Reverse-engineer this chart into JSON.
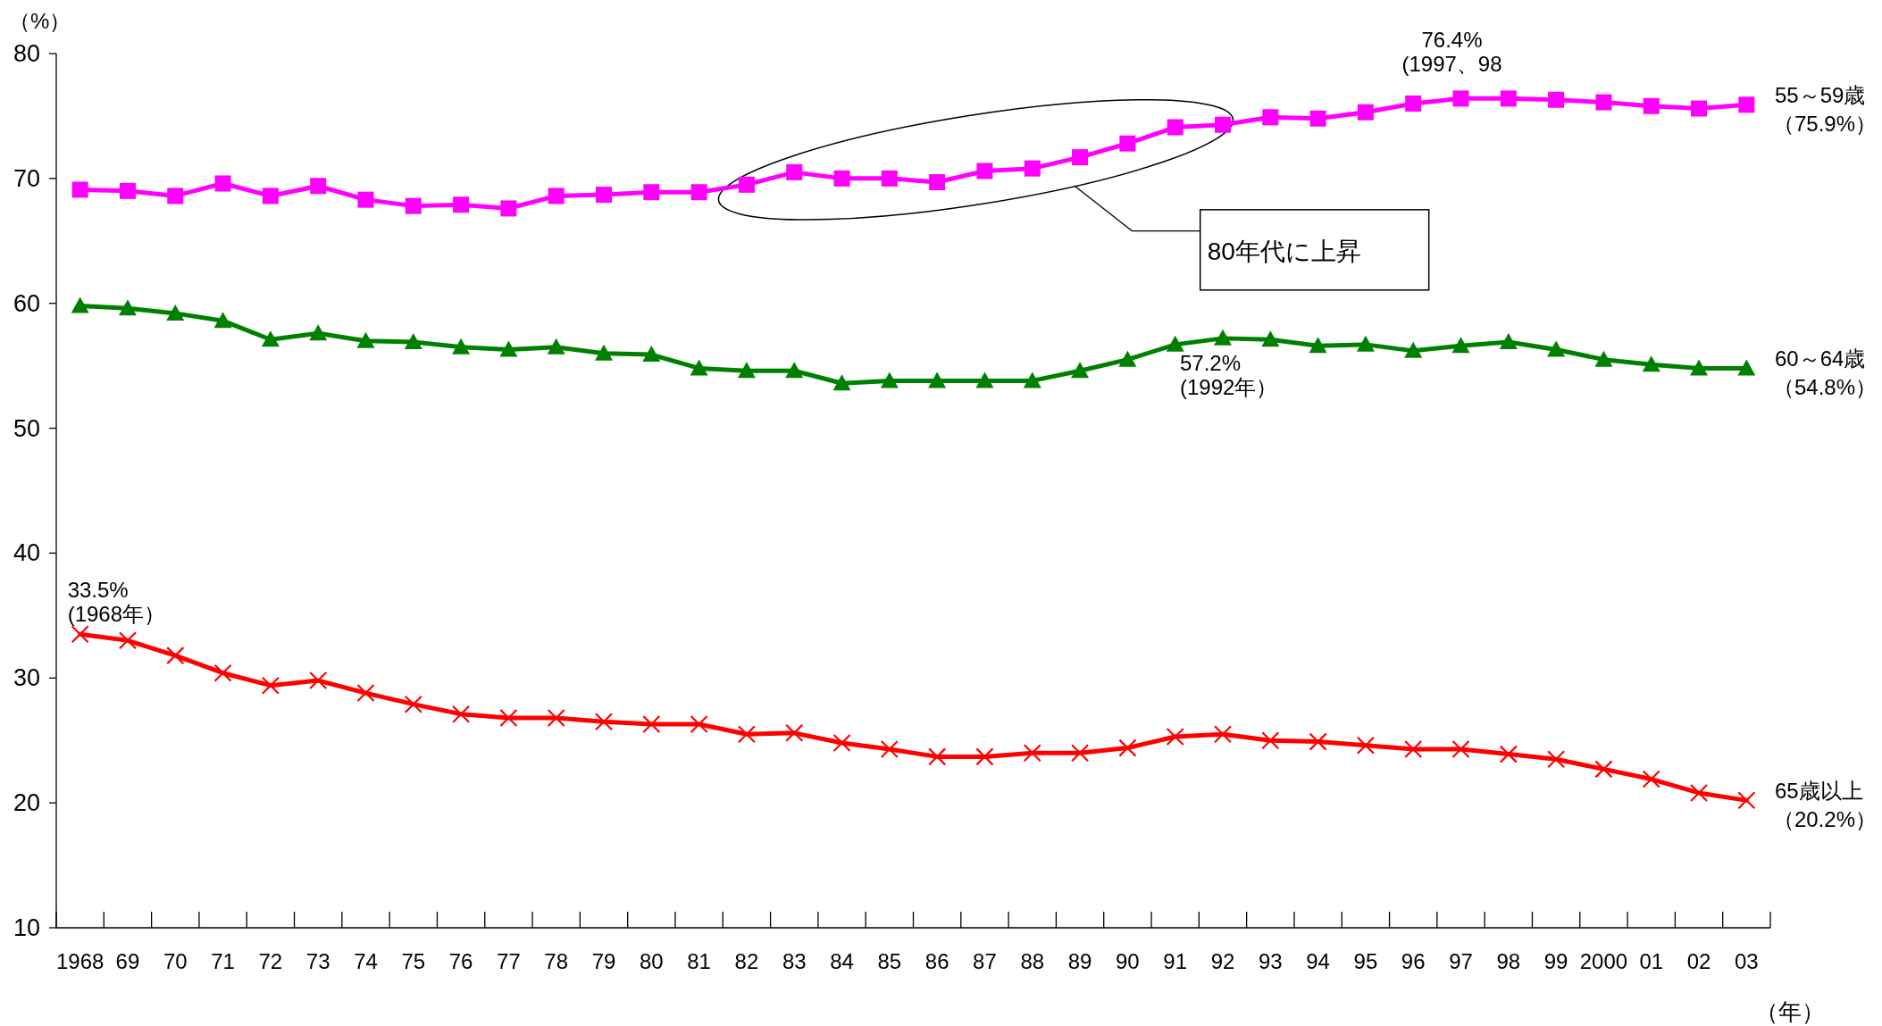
{
  "chart_data": {
    "type": "line",
    "ylabel": "（%）",
    "xlabel": "（年）",
    "categories": [
      "1968",
      "69",
      "70",
      "71",
      "72",
      "73",
      "74",
      "75",
      "76",
      "77",
      "78",
      "79",
      "80",
      "81",
      "82",
      "83",
      "84",
      "85",
      "86",
      "87",
      "88",
      "89",
      "90",
      "91",
      "92",
      "93",
      "94",
      "95",
      "96",
      "97",
      "98",
      "99",
      "2000",
      "01",
      "02",
      "03"
    ],
    "ylim": [
      10,
      80
    ],
    "yticks": [
      10,
      20,
      30,
      40,
      50,
      60,
      70,
      80
    ],
    "grid": false,
    "line_style": "solid",
    "series": [
      {
        "name": "55～59歳",
        "color": "#ff00ff",
        "marker": "square",
        "values": [
          69.1,
          69.0,
          68.6,
          69.6,
          68.6,
          69.4,
          68.3,
          67.8,
          67.9,
          67.6,
          68.6,
          68.7,
          68.9,
          68.9,
          69.5,
          70.5,
          70.0,
          70.0,
          69.7,
          70.6,
          70.8,
          71.7,
          72.8,
          74.1,
          74.3,
          74.9,
          74.8,
          75.3,
          76.0,
          76.4,
          76.4,
          76.3,
          76.1,
          75.8,
          75.6,
          75.9
        ]
      },
      {
        "name": "60～64歳",
        "color": "#008000",
        "marker": "triangle",
        "values": [
          59.8,
          59.6,
          59.2,
          58.6,
          57.1,
          57.6,
          57.0,
          56.9,
          56.5,
          56.3,
          56.5,
          56.0,
          55.9,
          54.8,
          54.6,
          54.6,
          53.6,
          53.8,
          53.8,
          53.8,
          53.8,
          54.6,
          55.5,
          56.7,
          57.2,
          57.1,
          56.6,
          56.7,
          56.2,
          56.6,
          56.9,
          56.3,
          55.5,
          55.1,
          54.8,
          54.8
        ]
      },
      {
        "name": "65歳以上",
        "color": "#ff0000",
        "marker": "cross",
        "values": [
          33.5,
          33.0,
          31.8,
          30.4,
          29.4,
          29.8,
          28.8,
          27.9,
          27.1,
          26.8,
          26.8,
          26.5,
          26.3,
          26.3,
          25.5,
          25.6,
          24.8,
          24.3,
          23.7,
          23.7,
          24.0,
          24.0,
          24.4,
          25.3,
          25.5,
          25.0,
          24.9,
          24.6,
          24.3,
          24.3,
          23.9,
          23.5,
          22.7,
          21.9,
          20.8,
          20.2
        ]
      }
    ],
    "annotations": [
      {
        "text": "76.4%\n(1997、98",
        "x": "97",
        "y": 76.4
      },
      {
        "text": "57.2%\n(1992年）",
        "x": "92",
        "y": 57.2
      },
      {
        "text": "33.5%\n(1968年）",
        "x": "1968",
        "y": 33.5
      },
      {
        "text": "（75.9%）",
        "x": "03",
        "y": 75.9
      },
      {
        "text": "（54.8%）",
        "x": "03",
        "y": 54.8
      },
      {
        "text": "（20.2%）",
        "x": "03",
        "y": 20.2
      },
      "80年代に上昇"
    ]
  }
}
